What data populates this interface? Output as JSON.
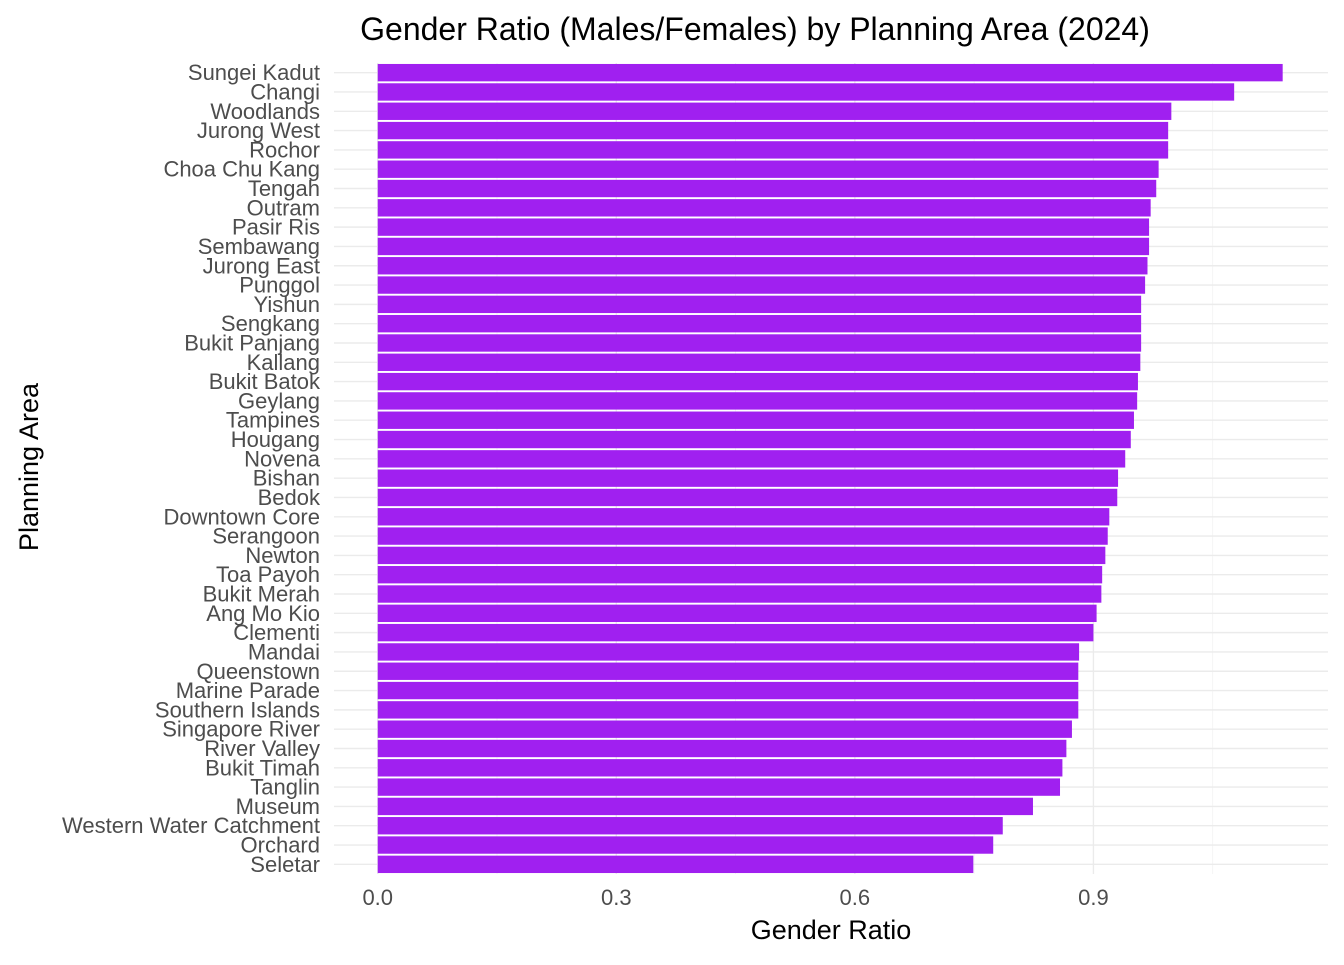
{
  "chart_data": {
    "type": "bar",
    "orientation": "horizontal",
    "title": "Gender Ratio (Males/Females) by Planning Area (2024)",
    "xlabel": "Gender Ratio",
    "ylabel": "Planning Area",
    "bar_color": "#a020f0",
    "grid": true,
    "legend": "none",
    "xlim": [
      -0.055,
      1.195
    ],
    "xticks": [
      0.0,
      0.3,
      0.6,
      0.9
    ],
    "xtick_labels": [
      "0.0",
      "0.3",
      "0.6",
      "0.9"
    ],
    "categories": [
      "Sungei Kadut",
      "Changi",
      "Woodlands",
      "Jurong West",
      "Rochor",
      "Choa Chu Kang",
      "Tengah",
      "Outram",
      "Pasir Ris",
      "Sembawang",
      "Jurong East",
      "Punggol",
      "Yishun",
      "Sengkang",
      "Bukit Panjang",
      "Kallang",
      "Bukit Batok",
      "Geylang",
      "Tampines",
      "Hougang",
      "Novena",
      "Bishan",
      "Bedok",
      "Downtown Core",
      "Serangoon",
      "Newton",
      "Toa Payoh",
      "Bukit Merah",
      "Ang Mo Kio",
      "Clementi",
      "Mandai",
      "Queenstown",
      "Marine Parade",
      "Southern Islands",
      "Singapore River",
      "River Valley",
      "Bukit Timah",
      "Tanglin",
      "Museum",
      "Western Water Catchment",
      "Orchard",
      "Seletar"
    ],
    "values": [
      1.138,
      1.077,
      0.998,
      0.994,
      0.994,
      0.982,
      0.979,
      0.972,
      0.97,
      0.97,
      0.968,
      0.965,
      0.96,
      0.96,
      0.96,
      0.959,
      0.956,
      0.955,
      0.951,
      0.947,
      0.94,
      0.931,
      0.93,
      0.92,
      0.918,
      0.915,
      0.911,
      0.91,
      0.904,
      0.9,
      0.882,
      0.881,
      0.881,
      0.881,
      0.873,
      0.866,
      0.861,
      0.858,
      0.824,
      0.786,
      0.774,
      0.749
    ]
  }
}
